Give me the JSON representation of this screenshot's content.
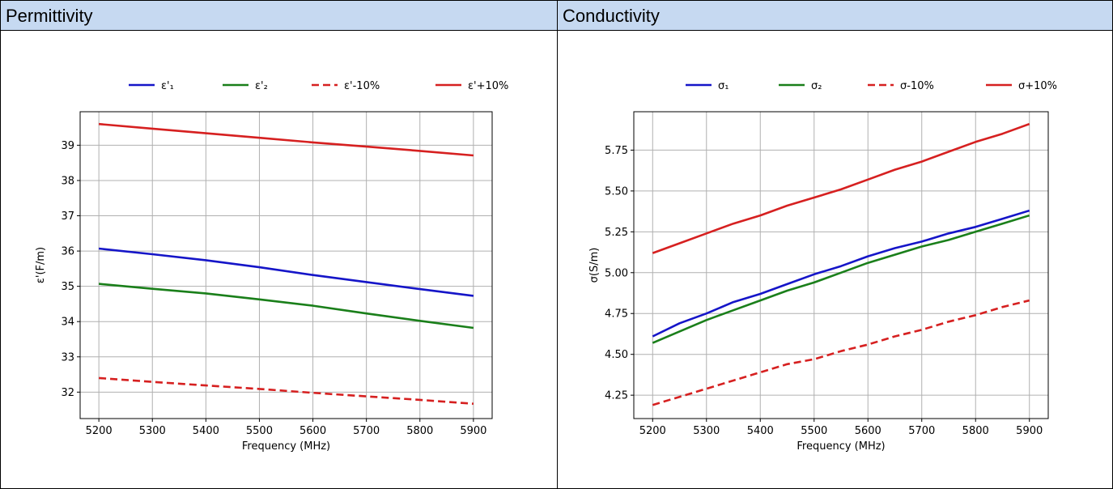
{
  "headers": [
    "Permittivity",
    "Conductivity"
  ],
  "chart_data": [
    {
      "type": "line",
      "xlabel": "Frequency (MHz)",
      "ylabel": "ε'(F/m)",
      "xlim": [
        5165,
        5935
      ],
      "ylim": [
        31.25,
        39.95
      ],
      "xticks": [
        5200,
        5300,
        5400,
        5500,
        5600,
        5700,
        5800,
        5900
      ],
      "yticks": [
        32,
        33,
        34,
        35,
        36,
        37,
        38,
        39
      ],
      "ytick_labels": [
        "32",
        "33",
        "34",
        "35",
        "36",
        "37",
        "38",
        "39"
      ],
      "grid": true,
      "legend": "top-center",
      "x": [
        5200,
        5300,
        5400,
        5500,
        5600,
        5700,
        5800,
        5900
      ],
      "series": [
        {
          "name": "ε'₁",
          "color": "#1515c8",
          "dash": false,
          "values": [
            36.07,
            35.91,
            35.74,
            35.54,
            35.32,
            35.12,
            34.92,
            34.73
          ]
        },
        {
          "name": "ε'₂",
          "color": "#1a7f1a",
          "dash": false,
          "values": [
            35.07,
            34.93,
            34.8,
            34.63,
            34.45,
            34.23,
            34.02,
            33.82
          ]
        },
        {
          "name": "ε'-10%",
          "color": "#d62020",
          "dash": true,
          "values": [
            32.4,
            32.29,
            32.19,
            32.09,
            31.98,
            31.88,
            31.78,
            31.67
          ]
        },
        {
          "name": "ε'+10%",
          "color": "#d62020",
          "dash": false,
          "values": [
            39.6,
            39.47,
            39.34,
            39.21,
            39.08,
            38.96,
            38.84,
            38.71
          ]
        }
      ]
    },
    {
      "type": "line",
      "xlabel": "Frequency (MHz)",
      "ylabel": "σ(S/m)",
      "xlim": [
        5165,
        5935
      ],
      "ylim": [
        4.107,
        5.985
      ],
      "xticks": [
        5200,
        5300,
        5400,
        5500,
        5600,
        5700,
        5800,
        5900
      ],
      "yticks": [
        4.25,
        4.5,
        4.75,
        5.0,
        5.25,
        5.5,
        5.75
      ],
      "ytick_labels": [
        "4.25",
        "4.50",
        "4.75",
        "5.00",
        "5.25",
        "5.50",
        "5.75"
      ],
      "grid": true,
      "legend": "top-center",
      "x": [
        5200,
        5250,
        5300,
        5350,
        5400,
        5450,
        5500,
        5550,
        5600,
        5650,
        5700,
        5750,
        5800,
        5850,
        5900
      ],
      "series": [
        {
          "name": "σ₁",
          "color": "#1515c8",
          "dash": false,
          "values": [
            4.61,
            4.69,
            4.75,
            4.82,
            4.87,
            4.93,
            4.99,
            5.04,
            5.1,
            5.15,
            5.19,
            5.24,
            5.28,
            5.33,
            5.38
          ]
        },
        {
          "name": "σ₂",
          "color": "#1a7f1a",
          "dash": false,
          "values": [
            4.57,
            4.64,
            4.71,
            4.77,
            4.83,
            4.89,
            4.94,
            5.0,
            5.06,
            5.11,
            5.16,
            5.2,
            5.25,
            5.3,
            5.35
          ]
        },
        {
          "name": "σ-10%",
          "color": "#d62020",
          "dash": true,
          "values": [
            4.19,
            4.24,
            4.29,
            4.34,
            4.39,
            4.44,
            4.47,
            4.52,
            4.56,
            4.61,
            4.65,
            4.7,
            4.74,
            4.79,
            4.83
          ]
        },
        {
          "name": "σ+10%",
          "color": "#d62020",
          "dash": false,
          "values": [
            5.12,
            5.18,
            5.24,
            5.3,
            5.35,
            5.41,
            5.46,
            5.51,
            5.57,
            5.63,
            5.68,
            5.74,
            5.8,
            5.85,
            5.91
          ]
        }
      ]
    }
  ]
}
